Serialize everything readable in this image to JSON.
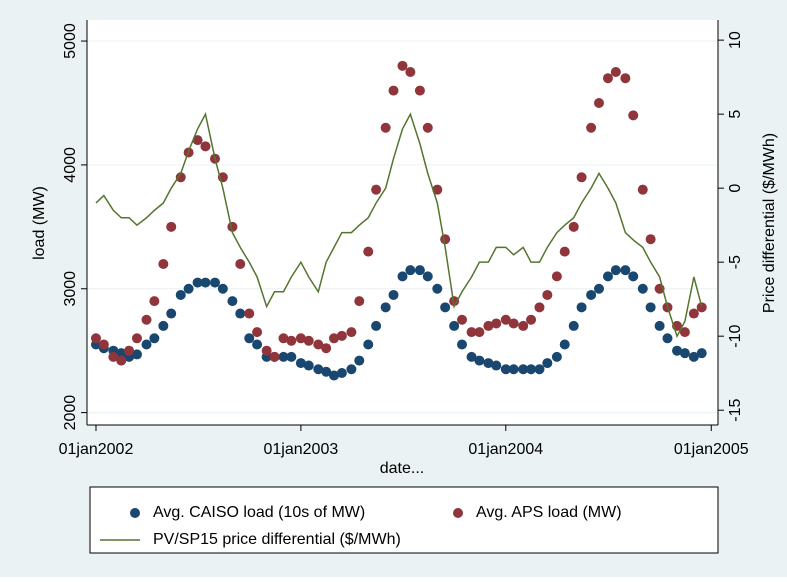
{
  "chart_data": {
    "type": "combo",
    "x_label": "date...",
    "y_label": "load (MW)",
    "y2_label": "Price differential ($/MWh)",
    "x": [
      "2002-01-01",
      "2002-01-15",
      "2002-02-01",
      "2002-02-15",
      "2002-03-01",
      "2002-03-15",
      "2002-04-01",
      "2002-04-15",
      "2002-05-01",
      "2002-05-15",
      "2002-06-01",
      "2002-06-15",
      "2002-07-01",
      "2002-07-15",
      "2002-08-01",
      "2002-08-15",
      "2002-09-01",
      "2002-09-15",
      "2002-10-01",
      "2002-10-15",
      "2002-11-01",
      "2002-11-15",
      "2002-12-01",
      "2002-12-15",
      "2003-01-01",
      "2003-01-15",
      "2003-02-01",
      "2003-02-15",
      "2003-03-01",
      "2003-03-15",
      "2003-04-01",
      "2003-04-15",
      "2003-05-01",
      "2003-05-15",
      "2003-06-01",
      "2003-06-15",
      "2003-07-01",
      "2003-07-15",
      "2003-08-01",
      "2003-08-15",
      "2003-09-01",
      "2003-09-15",
      "2003-10-01",
      "2003-10-15",
      "2003-11-01",
      "2003-11-15",
      "2003-12-01",
      "2003-12-15",
      "2004-01-01",
      "2004-01-15",
      "2004-02-01",
      "2004-02-15",
      "2004-03-01",
      "2004-03-15",
      "2004-04-01",
      "2004-04-15",
      "2004-05-01",
      "2004-05-15",
      "2004-06-01",
      "2004-06-15",
      "2004-07-01",
      "2004-07-15",
      "2004-08-01",
      "2004-08-15",
      "2004-09-01",
      "2004-09-15",
      "2004-10-01",
      "2004-10-15",
      "2004-11-01",
      "2004-11-15",
      "2004-12-01",
      "2004-12-15"
    ],
    "series": [
      {
        "name": "Avg. CAISO load (10s of MW)",
        "type": "scatter",
        "color": "#1a476f",
        "values": [
          2550,
          2520,
          2500,
          2480,
          2450,
          2470,
          2550,
          2600,
          2700,
          2800,
          2950,
          3000,
          3050,
          3050,
          3050,
          3000,
          2900,
          2800,
          2600,
          2550,
          2450,
          2450,
          2450,
          2450,
          2400,
          2380,
          2350,
          2330,
          2300,
          2320,
          2350,
          2420,
          2550,
          2700,
          2850,
          2950,
          3100,
          3150,
          3150,
          3100,
          3000,
          2850,
          2700,
          2550,
          2450,
          2420,
          2400,
          2380,
          2350,
          2350,
          2350,
          2350,
          2350,
          2400,
          2450,
          2550,
          2700,
          2850,
          2950,
          3000,
          3100,
          3150,
          3150,
          3100,
          3000,
          2850,
          2700,
          2600,
          2500,
          2480,
          2450,
          2480
        ]
      },
      {
        "name": "Avg. APS load (MW)",
        "type": "scatter",
        "color": "#90353b",
        "values": [
          2600,
          2550,
          2450,
          2420,
          2500,
          2600,
          2750,
          2900,
          3200,
          3500,
          3900,
          4100,
          4200,
          4150,
          4050,
          3900,
          3500,
          3200,
          2800,
          2650,
          2500,
          2450,
          2600,
          2580,
          2600,
          2580,
          2550,
          2520,
          2600,
          2620,
          2650,
          2900,
          3300,
          3800,
          4300,
          4600,
          4800,
          4750,
          4600,
          4300,
          3800,
          3400,
          2900,
          2750,
          2650,
          2650,
          2700,
          2720,
          2750,
          2720,
          2700,
          2750,
          2850,
          2950,
          3100,
          3300,
          3500,
          3900,
          4300,
          4500,
          4700,
          4750,
          4700,
          4400,
          3800,
          3400,
          3000,
          2850,
          2700,
          2650,
          2800,
          2850
        ]
      },
      {
        "name": "PV/SP15 price differential ($/MWh)",
        "type": "line",
        "axis": "y2",
        "color": "#55752f",
        "values": [
          -1,
          -0.5,
          -1.5,
          -2,
          -2,
          -2.5,
          -2,
          -1.5,
          -1,
          0,
          1,
          2.5,
          4,
          5,
          2,
          0,
          -3,
          -4,
          -5,
          -6,
          -8,
          -7,
          -7,
          -6,
          -5,
          -6,
          -7,
          -5,
          -4,
          -3,
          -3,
          -2.5,
          -2,
          -1,
          0,
          2,
          4,
          5,
          3,
          1,
          -1,
          -4,
          -8,
          -7,
          -6,
          -5,
          -5,
          -4,
          -4,
          -4.5,
          -4,
          -5,
          -5,
          -4,
          -3,
          -2.5,
          -2,
          -1,
          0,
          1,
          0,
          -1,
          -3,
          -3.5,
          -4,
          -5,
          -6,
          -8,
          -10,
          -9,
          -6,
          -8
        ]
      }
    ],
    "xlim": [
      "2001-12-16",
      "2005-01-13"
    ],
    "xticks": [
      {
        "value": "2002-01-01",
        "label": "01jan2002"
      },
      {
        "value": "2003-01-01",
        "label": "01jan2003"
      },
      {
        "value": "2004-01-01",
        "label": "01jan2004"
      },
      {
        "value": "2005-01-01",
        "label": "01jan2005"
      }
    ],
    "ylim": [
      1900,
      5170
    ],
    "yticks": [
      2000,
      3000,
      4000,
      5000
    ],
    "y2lim": [
      -16,
      11.36
    ],
    "y2ticks": [
      -15,
      -10,
      -5,
      0,
      5,
      10
    ],
    "grid": true
  }
}
